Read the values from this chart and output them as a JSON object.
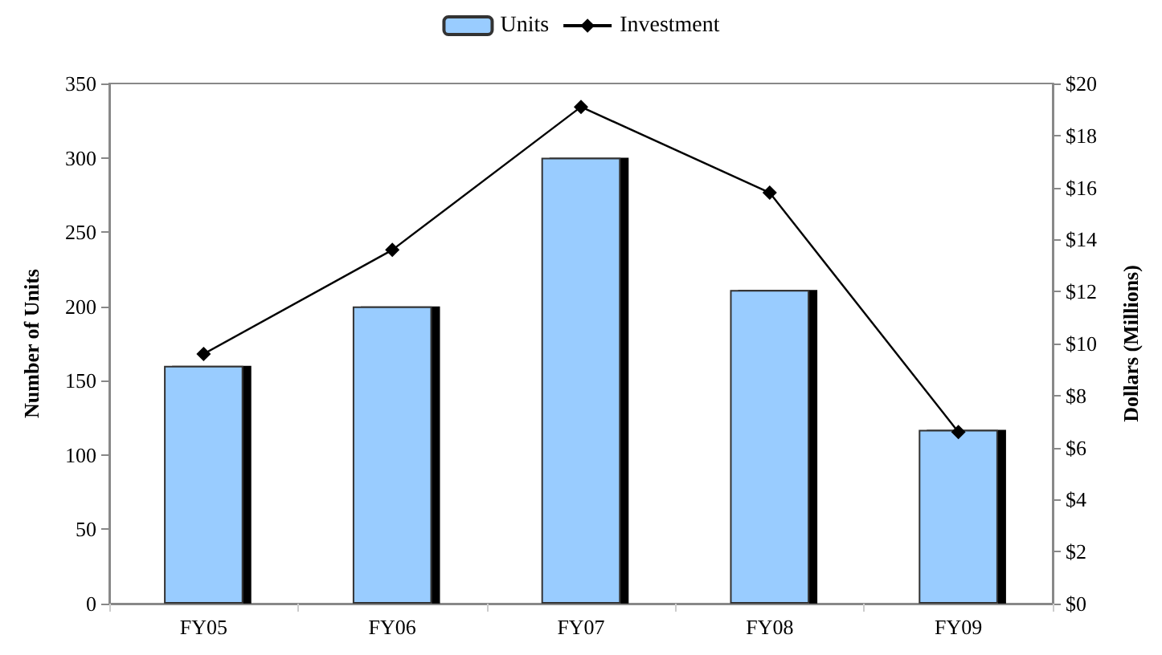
{
  "chart_data": {
    "type": "bar",
    "categories": [
      "FY05",
      "FY06",
      "FY07",
      "FY08",
      "FY09"
    ],
    "series": [
      {
        "name": "Units",
        "color": "#99ccff",
        "values": [
          160,
          200,
          300,
          211,
          117
        ]
      },
      {
        "name": "Investment",
        "type": "line",
        "axis": "y2",
        "color": "#000000",
        "marker": "diamond",
        "values": [
          9.6,
          13.6,
          19.1,
          15.8,
          6.6
        ]
      }
    ],
    "ylabel": "Number of Units",
    "y2label": "Dollars (Millions)",
    "ylim": [
      0,
      350
    ],
    "yticks": [
      0,
      50,
      100,
      150,
      200,
      250,
      300,
      350
    ],
    "y2lim": [
      0,
      20
    ],
    "y2ticks": [
      {
        "value": 0,
        "label": "$0"
      },
      {
        "value": 2,
        "label": "$2"
      },
      {
        "value": 4,
        "label": "$4"
      },
      {
        "value": 6,
        "label": "$6"
      },
      {
        "value": 8,
        "label": "$8"
      },
      {
        "value": 10,
        "label": "$10"
      },
      {
        "value": 12,
        "label": "$12"
      },
      {
        "value": 14,
        "label": "$14"
      },
      {
        "value": 16,
        "label": "$16"
      },
      {
        "value": 18,
        "label": "$18"
      },
      {
        "value": 20,
        "label": "$20"
      }
    ],
    "grid": false,
    "legend": "top"
  }
}
